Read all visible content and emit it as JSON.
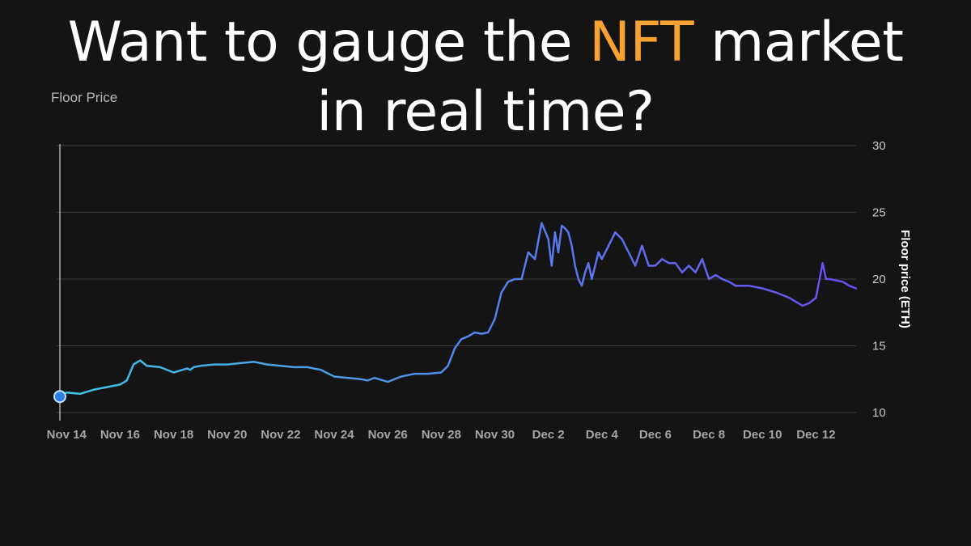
{
  "headline": {
    "line1_before": "Want to gauge the ",
    "line1_accent": "NFT",
    "line1_after": " market",
    "line2": "in real time?"
  },
  "panel": {
    "title": "Floor Price"
  },
  "colors": {
    "background": "#141414",
    "accent": "#f7a231",
    "line_start": "#3cc3e6",
    "line_end": "#6a4cf0",
    "grid": "#3a3a3a",
    "cursor": "#cfcfcf"
  },
  "chart_data": {
    "type": "line",
    "title": "Floor Price",
    "xlabel": "",
    "ylabel": "Floor price (ETH)",
    "y_axis_side": "right",
    "ylim": [
      10,
      30
    ],
    "yticks": [
      10,
      15,
      20,
      25,
      30
    ],
    "xlim": [
      "Nov 13 18:00",
      "Dec 13 12:00"
    ],
    "xtick_labels": [
      "Nov 14",
      "Nov 16",
      "Nov 18",
      "Nov 20",
      "Nov 22",
      "Nov 24",
      "Nov 26",
      "Nov 28",
      "Nov 30",
      "Dec 2",
      "Dec 4",
      "Dec 6",
      "Dec 8",
      "Dec 10",
      "Dec 12"
    ],
    "grid": true,
    "highlight_point": {
      "x": "Nov 13 18:00",
      "y": 11.2
    },
    "series": [
      {
        "x": [
          "Nov 13 18:00",
          "Nov 14 00:00",
          "Nov 14 12:00",
          "Nov 15 00:00",
          "Nov 15 12:00",
          "Nov 16 00:00",
          "Nov 16 06:00",
          "Nov 16 12:00",
          "Nov 16 18:00",
          "Nov 17 00:00",
          "Nov 17 12:00",
          "Nov 18 00:00",
          "Nov 18 12:00",
          "Nov 18 15:00",
          "Nov 18 18:00",
          "Nov 19 00:00",
          "Nov 19 12:00",
          "Nov 20 00:00",
          "Nov 20 12:00",
          "Nov 21 00:00",
          "Nov 21 12:00",
          "Nov 22 00:00",
          "Nov 22 12:00",
          "Nov 23 00:00",
          "Nov 23 06:00",
          "Nov 23 12:00",
          "Nov 24 00:00",
          "Nov 24 12:00",
          "Nov 25 00:00",
          "Nov 25 06:00",
          "Nov 25 12:00",
          "Nov 26 00:00",
          "Nov 26 06:00",
          "Nov 26 12:00",
          "Nov 27 00:00",
          "Nov 27 12:00",
          "Nov 28 00:00",
          "Nov 28 06:00",
          "Nov 28 12:00",
          "Nov 28 18:00",
          "Nov 29 00:00",
          "Nov 29 06:00",
          "Nov 29 12:00",
          "Nov 29 18:00",
          "Nov 30 00:00",
          "Nov 30 06:00",
          "Nov 30 12:00",
          "Nov 30 18:00",
          "Dec 1 00:00",
          "Dec 1 06:00",
          "Dec 1 12:00",
          "Dec 1 18:00",
          "Dec 2 00:00",
          "Dec 2 03:00",
          "Dec 2 06:00",
          "Dec 2 09:00",
          "Dec 2 12:00",
          "Dec 2 15:00",
          "Dec 2 18:00",
          "Dec 2 21:00",
          "Dec 3 00:00",
          "Dec 3 03:00",
          "Dec 3 06:00",
          "Dec 3 09:00",
          "Dec 3 12:00",
          "Dec 3 15:00",
          "Dec 3 18:00",
          "Dec 3 21:00",
          "Dec 4 00:00",
          "Dec 4 06:00",
          "Dec 4 12:00",
          "Dec 4 18:00",
          "Dec 5 00:00",
          "Dec 5 06:00",
          "Dec 5 12:00",
          "Dec 5 18:00",
          "Dec 6 00:00",
          "Dec 6 06:00",
          "Dec 6 12:00",
          "Dec 6 18:00",
          "Dec 7 00:00",
          "Dec 7 06:00",
          "Dec 7 12:00",
          "Dec 7 18:00",
          "Dec 8 00:00",
          "Dec 8 06:00",
          "Dec 8 12:00",
          "Dec 8 18:00",
          "Dec 9 00:00",
          "Dec 9 06:00",
          "Dec 9 12:00",
          "Dec 10 00:00",
          "Dec 10 12:00",
          "Dec 11 00:00",
          "Dec 11 12:00",
          "Dec 11 18:00",
          "Dec 12 00:00",
          "Dec 12 06:00",
          "Dec 12 09:00",
          "Dec 12 12:00",
          "Dec 12 18:00",
          "Dec 13 00:00",
          "Dec 13 06:00",
          "Dec 13 12:00"
        ],
        "y": [
          11.2,
          11.5,
          11.4,
          11.7,
          11.9,
          12.1,
          12.4,
          13.6,
          13.9,
          13.5,
          13.4,
          13.0,
          13.3,
          13.2,
          13.4,
          13.5,
          13.6,
          13.6,
          13.7,
          13.8,
          13.6,
          13.5,
          13.4,
          13.4,
          13.3,
          13.2,
          12.7,
          12.6,
          12.5,
          12.4,
          12.6,
          12.3,
          12.5,
          12.7,
          12.9,
          12.9,
          13.0,
          13.5,
          14.8,
          15.5,
          15.7,
          16.0,
          15.9,
          16.0,
          17.0,
          19.0,
          19.8,
          20.0,
          20.0,
          22.0,
          21.5,
          24.2,
          23.0,
          21.0,
          23.5,
          22.0,
          24.0,
          23.8,
          23.5,
          22.5,
          21.0,
          20.0,
          19.5,
          20.5,
          21.2,
          20.0,
          21.0,
          22.0,
          21.5,
          22.5,
          23.5,
          23.0,
          22.0,
          21.0,
          22.5,
          21.0,
          21.0,
          21.5,
          21.2,
          21.2,
          20.5,
          21.0,
          20.5,
          21.5,
          20.0,
          20.3,
          20.0,
          19.8,
          19.5,
          19.5,
          19.5,
          19.3,
          19.0,
          18.6,
          18.0,
          18.2,
          18.6,
          21.2,
          20.0,
          20.0,
          19.9,
          19.8,
          19.5,
          19.3
        ]
      }
    ]
  }
}
